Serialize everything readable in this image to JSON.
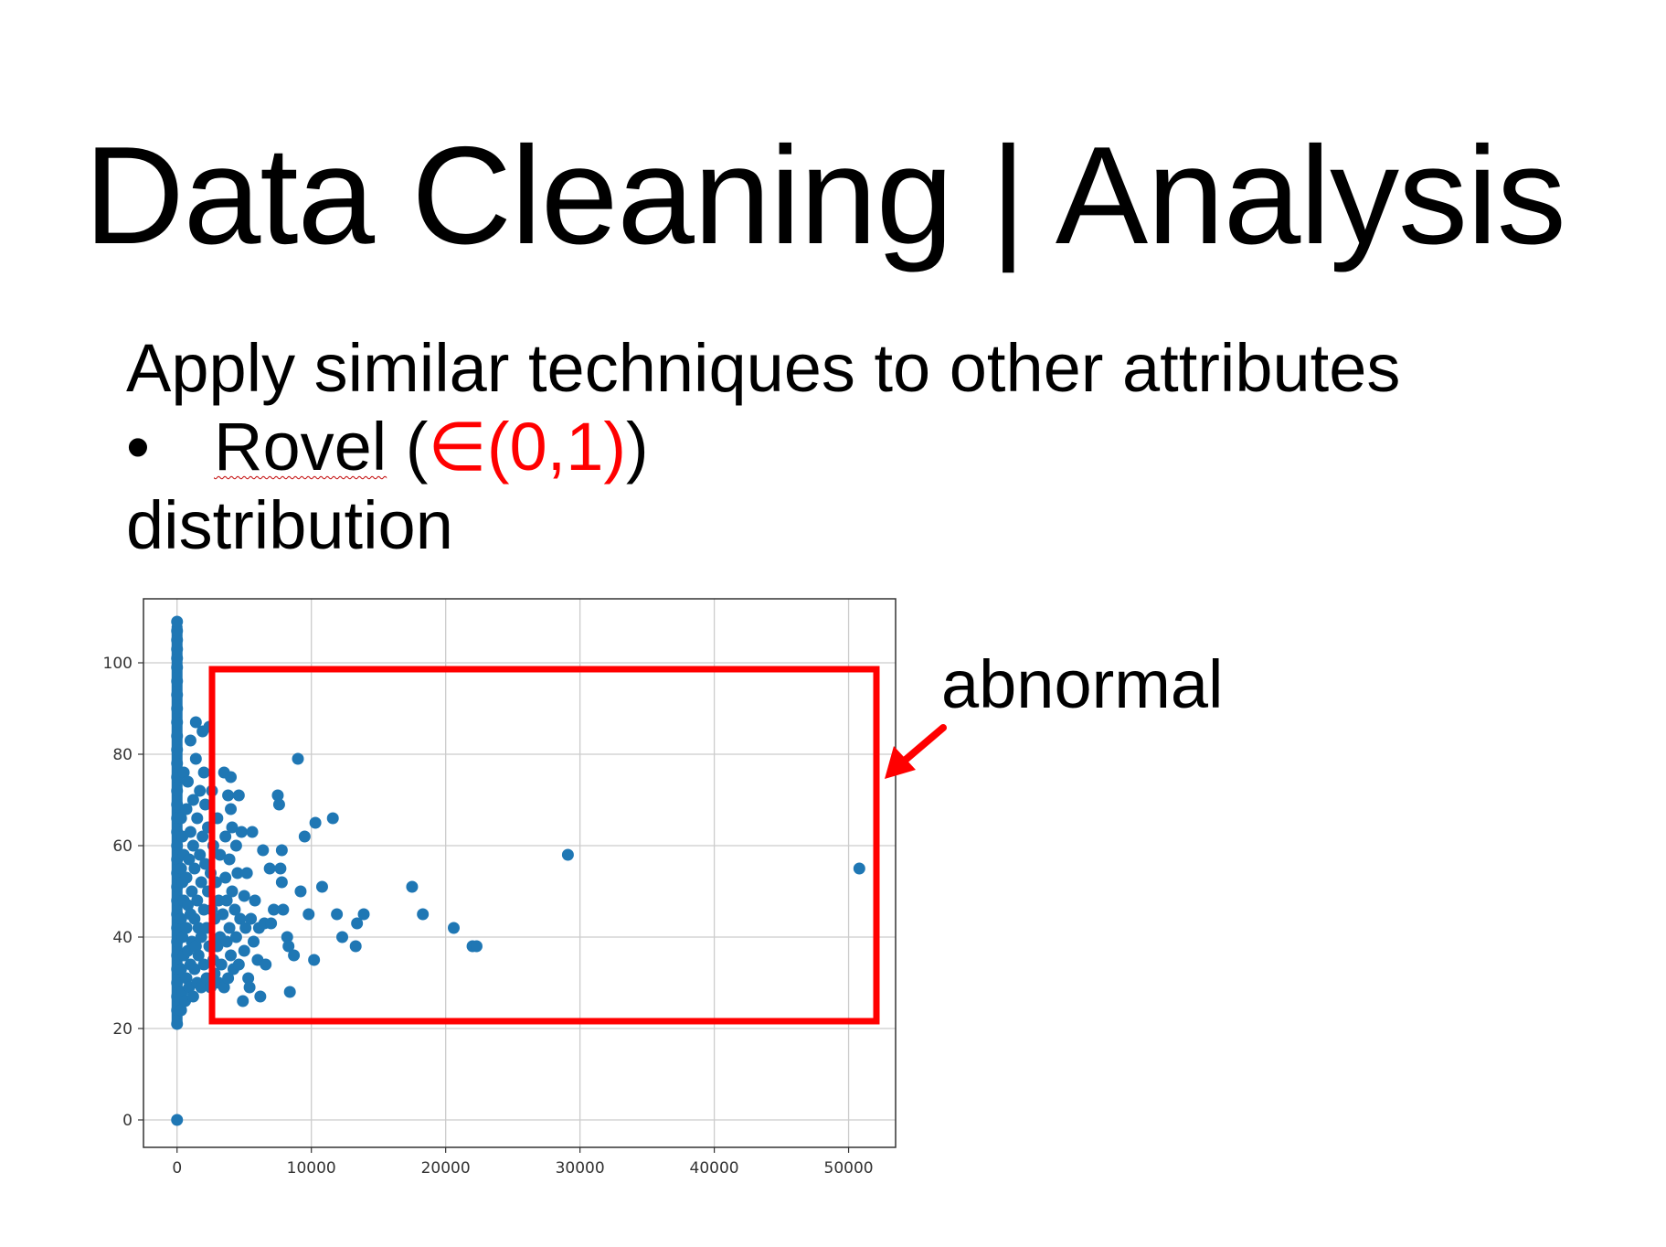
{
  "slide": {
    "title": "Data Cleaning | Analysis",
    "line1": "Apply similar techniques to other attributes",
    "bullet_symbol": "•",
    "bullet_name": "Rovel",
    "bullet_open": " (",
    "bullet_range": "∈(0,1)",
    "bullet_close": ")",
    "line3": "distribution",
    "annotation": "abnormal"
  },
  "colors": {
    "point": "#1f77b4",
    "highlight": "#ff0000",
    "grid": "#cccccc"
  },
  "chart_data": {
    "type": "scatter",
    "xlim": [
      -2500,
      53500
    ],
    "ylim": [
      -6,
      114
    ],
    "grid": true,
    "xticks": [
      0,
      10000,
      20000,
      30000,
      40000,
      50000
    ],
    "yticks": [
      0,
      20,
      40,
      60,
      80,
      100
    ],
    "points": [
      [
        0,
        0
      ],
      [
        0,
        21
      ],
      [
        0,
        24
      ],
      [
        0,
        27
      ],
      [
        0,
        30
      ],
      [
        0,
        33
      ],
      [
        0,
        36
      ],
      [
        0,
        39
      ],
      [
        0,
        42
      ],
      [
        0,
        45
      ],
      [
        0,
        48
      ],
      [
        0,
        51
      ],
      [
        0,
        54
      ],
      [
        0,
        57
      ],
      [
        0,
        60
      ],
      [
        0,
        63
      ],
      [
        0,
        66
      ],
      [
        0,
        69
      ],
      [
        0,
        72
      ],
      [
        0,
        75
      ],
      [
        0,
        78
      ],
      [
        0,
        81
      ],
      [
        0,
        84
      ],
      [
        0,
        87
      ],
      [
        0,
        90
      ],
      [
        0,
        93
      ],
      [
        0,
        96
      ],
      [
        0,
        99
      ],
      [
        0,
        101
      ],
      [
        0,
        103
      ],
      [
        0,
        105
      ],
      [
        0,
        107
      ],
      [
        0,
        109
      ],
      [
        300,
        24
      ],
      [
        300,
        33
      ],
      [
        300,
        44
      ],
      [
        300,
        55
      ],
      [
        300,
        66
      ],
      [
        400,
        28
      ],
      [
        400,
        40
      ],
      [
        400,
        52
      ],
      [
        400,
        62
      ],
      [
        500,
        36
      ],
      [
        500,
        48
      ],
      [
        500,
        58
      ],
      [
        500,
        76
      ],
      [
        600,
        26
      ],
      [
        700,
        31
      ],
      [
        700,
        42
      ],
      [
        700,
        53
      ],
      [
        700,
        68
      ],
      [
        800,
        37
      ],
      [
        800,
        47
      ],
      [
        800,
        74
      ],
      [
        900,
        29
      ],
      [
        900,
        57
      ],
      [
        1000,
        34
      ],
      [
        1000,
        45
      ],
      [
        1000,
        63
      ],
      [
        1000,
        83
      ],
      [
        1100,
        39
      ],
      [
        1100,
        50
      ],
      [
        1200,
        27
      ],
      [
        1200,
        60
      ],
      [
        1200,
        70
      ],
      [
        1300,
        33
      ],
      [
        1300,
        44
      ],
      [
        1300,
        55
      ],
      [
        1400,
        38
      ],
      [
        1400,
        79
      ],
      [
        1400,
        87
      ],
      [
        1500,
        30
      ],
      [
        1500,
        48
      ],
      [
        1500,
        66
      ],
      [
        1600,
        36
      ],
      [
        1600,
        42
      ],
      [
        1700,
        58
      ],
      [
        1700,
        72
      ],
      [
        1800,
        29
      ],
      [
        1800,
        40
      ],
      [
        1800,
        52
      ],
      [
        1900,
        62
      ],
      [
        1900,
        85
      ],
      [
        2000,
        34
      ],
      [
        2000,
        46
      ],
      [
        2000,
        76
      ],
      [
        2100,
        56
      ],
      [
        2100,
        69
      ],
      [
        2200,
        31
      ],
      [
        2200,
        42
      ],
      [
        2300,
        50
      ],
      [
        2300,
        64
      ],
      [
        2400,
        38
      ],
      [
        2400,
        86
      ],
      [
        2500,
        29
      ],
      [
        2500,
        54
      ],
      [
        2600,
        46
      ],
      [
        2600,
        72
      ],
      [
        2700,
        35
      ],
      [
        2700,
        60
      ],
      [
        2800,
        32
      ],
      [
        2800,
        44
      ],
      [
        2900,
        52
      ],
      [
        3000,
        38
      ],
      [
        3000,
        66
      ],
      [
        3100,
        30
      ],
      [
        3100,
        48
      ],
      [
        3200,
        58
      ],
      [
        3200,
        40
      ],
      [
        3300,
        34
      ],
      [
        3400,
        45
      ],
      [
        3500,
        76
      ],
      [
        3500,
        29
      ],
      [
        3600,
        53
      ],
      [
        3600,
        62
      ],
      [
        3700,
        39
      ],
      [
        3700,
        48
      ],
      [
        3800,
        31
      ],
      [
        3800,
        71
      ],
      [
        3900,
        42
      ],
      [
        3900,
        57
      ],
      [
        4000,
        36
      ],
      [
        4000,
        68
      ],
      [
        4000,
        75
      ],
      [
        4100,
        50
      ],
      [
        4100,
        64
      ],
      [
        4200,
        33
      ],
      [
        4300,
        46
      ],
      [
        4400,
        60
      ],
      [
        4400,
        40
      ],
      [
        4500,
        54
      ],
      [
        4600,
        71
      ],
      [
        4600,
        34
      ],
      [
        4700,
        44
      ],
      [
        4800,
        63
      ],
      [
        4900,
        26
      ],
      [
        5000,
        49
      ],
      [
        5000,
        37
      ],
      [
        5100,
        42
      ],
      [
        5200,
        54
      ],
      [
        5300,
        31
      ],
      [
        5400,
        29
      ],
      [
        5500,
        44
      ],
      [
        5600,
        63
      ],
      [
        5700,
        39
      ],
      [
        5800,
        48
      ],
      [
        6000,
        35
      ],
      [
        6100,
        42
      ],
      [
        6200,
        27
      ],
      [
        6400,
        59
      ],
      [
        6500,
        43
      ],
      [
        6600,
        34
      ],
      [
        6900,
        55
      ],
      [
        7000,
        43
      ],
      [
        7200,
        46
      ],
      [
        7500,
        71
      ],
      [
        7600,
        69
      ],
      [
        7700,
        55
      ],
      [
        7800,
        59
      ],
      [
        7800,
        52
      ],
      [
        7900,
        46
      ],
      [
        8200,
        40
      ],
      [
        8300,
        38
      ],
      [
        8400,
        28
      ],
      [
        8700,
        36
      ],
      [
        9000,
        79
      ],
      [
        9200,
        50
      ],
      [
        9500,
        62
      ],
      [
        9800,
        45
      ],
      [
        10200,
        35
      ],
      [
        10300,
        65
      ],
      [
        10800,
        51
      ],
      [
        11600,
        66
      ],
      [
        11900,
        45
      ],
      [
        12300,
        40
      ],
      [
        13300,
        38
      ],
      [
        13400,
        43
      ],
      [
        13900,
        45
      ],
      [
        17500,
        51
      ],
      [
        18300,
        45
      ],
      [
        20600,
        42
      ],
      [
        22000,
        38
      ],
      [
        22300,
        38
      ],
      [
        29100,
        58
      ],
      [
        50800,
        55
      ]
    ]
  }
}
